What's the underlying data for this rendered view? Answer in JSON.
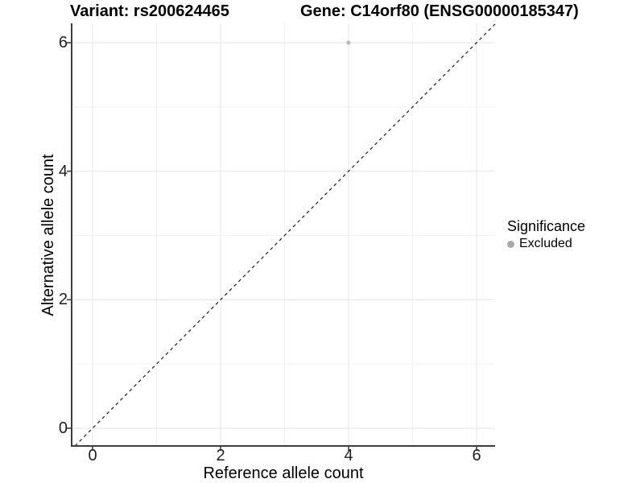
{
  "figure": {
    "title_left": "Variant: rs200624465",
    "title_right": "Gene: C14orf80 (ENSG00000185347)"
  },
  "chart_data": {
    "type": "scatter",
    "title": "Variant: rs200624465   Gene: C14orf80 (ENSG00000185347)",
    "xlabel": "Reference allele count",
    "ylabel": "Alternative allele count",
    "xlim": [
      -0.3,
      6.3
    ],
    "ylim": [
      -0.3,
      6.3
    ],
    "x_ticks": [
      0,
      2,
      4,
      6
    ],
    "y_ticks": [
      0,
      2,
      4,
      6
    ],
    "x_minor_ticks": [
      1,
      3,
      5
    ],
    "y_minor_ticks": [
      1,
      3,
      5
    ],
    "x_tick_labels": [
      "0",
      "2",
      "4",
      "6"
    ],
    "y_tick_labels": [
      "0",
      "2",
      "4",
      "6"
    ],
    "grid": true,
    "series": [
      {
        "name": "Excluded",
        "points": [
          {
            "x": 4,
            "y": 6
          }
        ],
        "color": "#bdbdbd",
        "marker": "circle"
      }
    ],
    "reference_line": {
      "kind": "identity",
      "slope": 1,
      "intercept": 0,
      "style": "dashed",
      "color": "#1a1a1a"
    },
    "legend": {
      "title": "Significance",
      "position": "right",
      "entries": [
        {
          "label": "Excluded",
          "color": "#a9a9a9",
          "marker": "circle"
        }
      ]
    },
    "colors": {
      "grid_major": "#e6e6e6",
      "grid_minor": "#f2f2f2",
      "axis_line": "#3d3d3d",
      "tick_mark": "#333333",
      "background": "#ffffff"
    }
  }
}
